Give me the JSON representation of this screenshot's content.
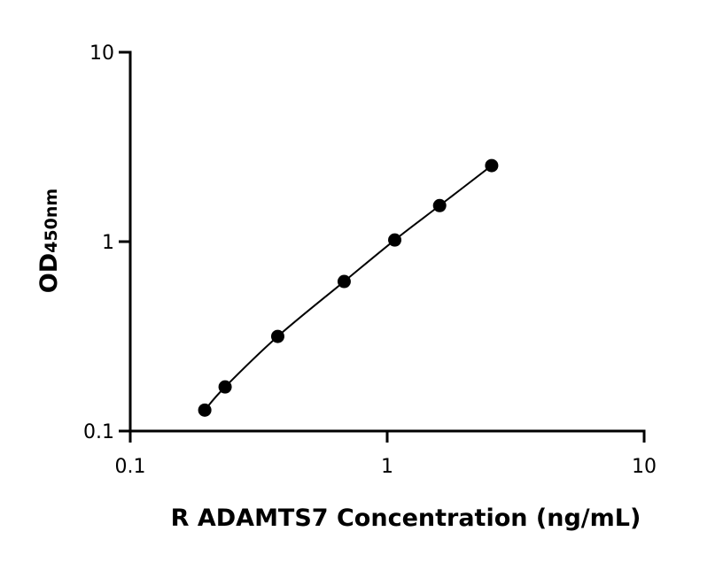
{
  "chart_data": {
    "type": "scatter",
    "x_label": "R ADAMTS7 Concentration (ng/mL)",
    "y_label": "OD",
    "y_label_sub": "450nm",
    "series": [
      {
        "x": [
          0.195,
          0.234,
          0.375,
          0.68,
          1.07,
          1.6,
          2.55
        ],
        "values": [
          0.129,
          0.171,
          0.316,
          0.616,
          1.02,
          1.55,
          2.52
        ],
        "color": "#000000",
        "line": true
      }
    ],
    "xscale": "log",
    "yscale": "log",
    "xlim": [
      0.1,
      10
    ],
    "ylim": [
      0.1,
      10
    ],
    "xticks": [
      0.1,
      1,
      10
    ],
    "yticks": [
      0.1,
      1,
      10
    ]
  }
}
